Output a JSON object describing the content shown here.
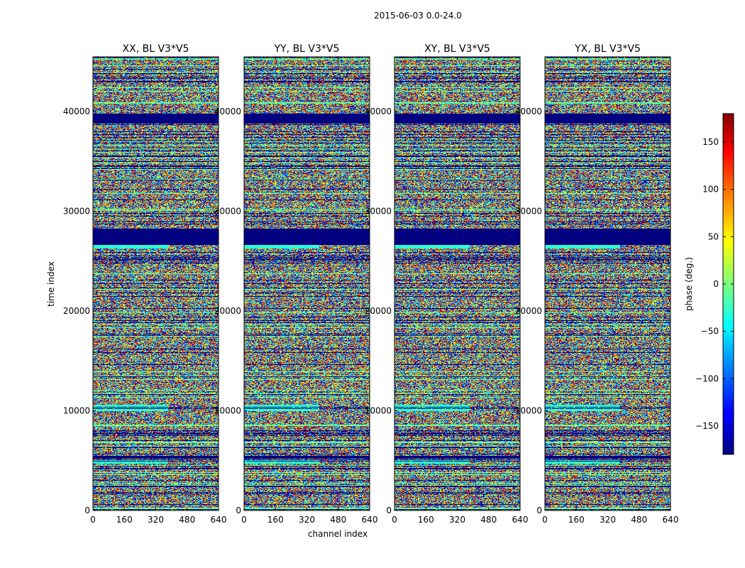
{
  "figure": {
    "suptitle": "2015-06-03 0.0-24.0"
  },
  "chart_data": {
    "type": "heatmap",
    "colormap": "jet",
    "xlabel": "channel index",
    "ylabel": "time index",
    "xlim": [
      0,
      640
    ],
    "ylim": [
      0,
      45500
    ],
    "x_ticks": [
      "0",
      "160",
      "320",
      "480",
      "640"
    ],
    "y_ticks": [
      "0",
      "10000",
      "20000",
      "30000",
      "40000"
    ],
    "colorbar": {
      "label": "phase (deg.)",
      "range": [
        -180,
        180
      ],
      "ticks": [
        "150",
        "100",
        "50",
        "0",
        "−50",
        "−100",
        "−150"
      ]
    },
    "panels": [
      {
        "title": "XX, BL V3*V5"
      },
      {
        "title": "YY, BL V3*V5"
      },
      {
        "title": "XY, BL V3*V5"
      },
      {
        "title": "YX, BL V3*V5"
      }
    ],
    "flagged_time_ranges": [
      [
        26600,
        28300
      ],
      [
        38800,
        39800
      ],
      [
        5200,
        5500
      ]
    ],
    "low_noise_bands": [
      [
        10000,
        10600
      ],
      [
        26300,
        26600
      ],
      [
        4700,
        5100
      ]
    ]
  }
}
